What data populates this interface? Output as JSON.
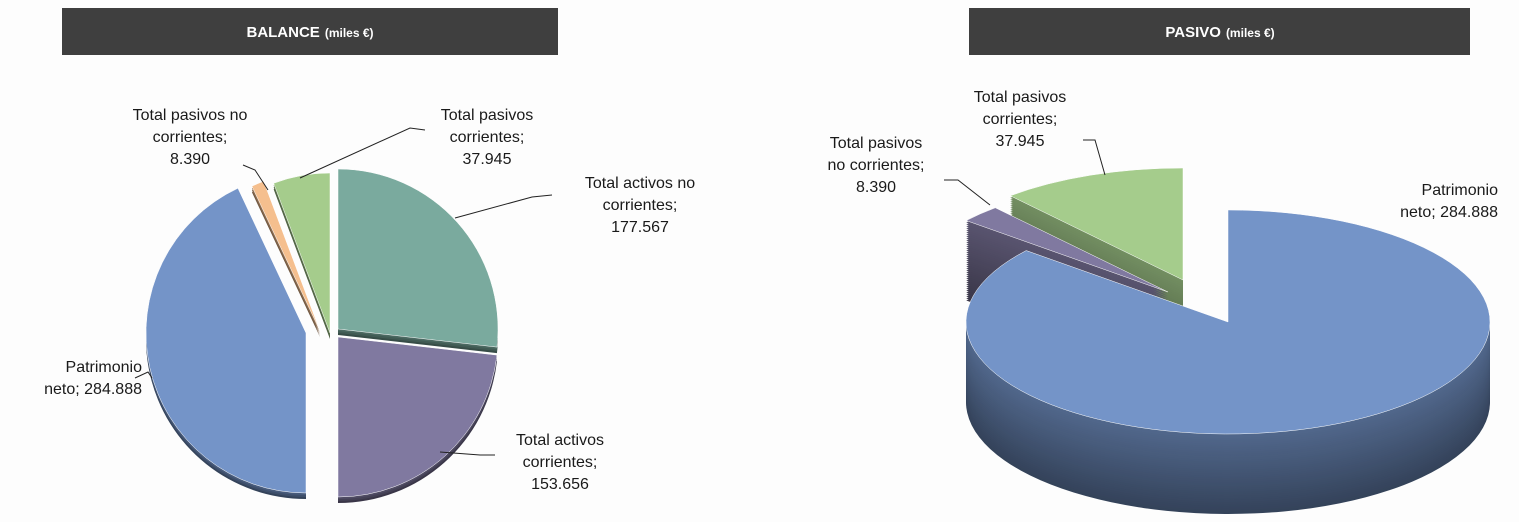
{
  "chart_data": [
    {
      "type": "pie",
      "title": "BALANCE",
      "subtitle": "(miles €)",
      "values": [
        177567,
        153656,
        284888,
        8390,
        37945
      ],
      "value_labels": [
        "Total activos no corrientes; 177.567",
        "Total activos corrientes; 153.656",
        "Patrimonio neto; 284.888",
        "Total pasivos no corrientes; 8.390",
        "Total pasivos corrientes; 37.945"
      ],
      "colors": [
        "#7aaa9e",
        "#8079a0",
        "#7494c8",
        "#f5bf8e",
        "#a5cc8c"
      ]
    },
    {
      "type": "pie",
      "title": "PASIVO",
      "subtitle": "(miles €)",
      "values": [
        284888,
        8390,
        37945
      ],
      "value_labels": [
        "Patrimonio neto; 284.888",
        "Total pasivos no corrientes; 8.390",
        "Total pasivos corrientes; 37.945"
      ],
      "colors": [
        "#7494c8",
        "#8079a0",
        "#a5cc8c"
      ]
    }
  ]
}
